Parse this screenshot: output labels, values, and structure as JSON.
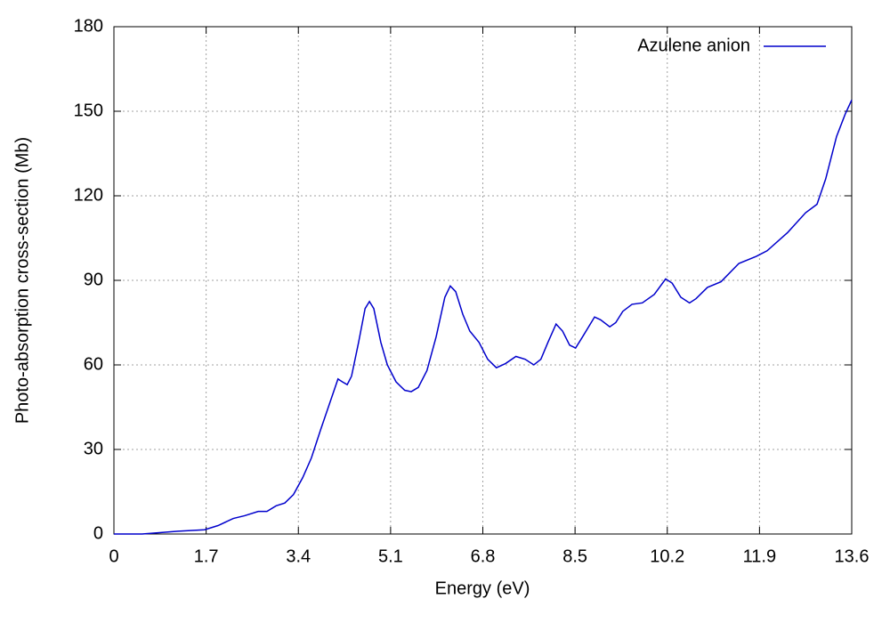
{
  "chart_data": {
    "type": "line",
    "x_label": "Energy (eV)",
    "y_label": "Photo-absorption cross-section (Mb)",
    "xlim": [
      0,
      13.6
    ],
    "ylim": [
      0,
      180
    ],
    "xticks": [
      0,
      1.7,
      3.4,
      5.1,
      6.8,
      8.5,
      10.2,
      11.9,
      13.6
    ],
    "yticks": [
      0,
      30,
      60,
      90,
      120,
      150,
      180
    ],
    "grid": true,
    "legend": "upper right",
    "x": [
      0,
      0.52,
      1.18,
      1.67,
      1.92,
      2.2,
      2.41,
      2.66,
      2.82,
      2.99,
      3.15,
      3.31,
      3.48,
      3.64,
      3.81,
      3.97,
      4.13,
      4.21,
      4.3,
      4.38,
      4.51,
      4.63,
      4.71,
      4.79,
      4.92,
      5.04,
      5.2,
      5.36,
      5.48,
      5.61,
      5.77,
      5.94,
      6.1,
      6.2,
      6.3,
      6.43,
      6.56,
      6.73,
      6.89,
      7.05,
      7.22,
      7.41,
      7.58,
      7.74,
      7.87,
      8.0,
      8.15,
      8.27,
      8.4,
      8.51,
      8.64,
      8.86,
      8.97,
      9.14,
      9.25,
      9.38,
      9.55,
      9.74,
      9.96,
      10.17,
      10.29,
      10.45,
      10.61,
      10.73,
      10.94,
      11.19,
      11.52,
      11.84,
      12.04,
      12.42,
      12.75,
      12.96,
      13.12,
      13.32,
      13.48,
      13.6
    ],
    "series": [
      {
        "name": "Azulene anion",
        "color": "#0000cc",
        "values": [
          0,
          0,
          1,
          1.5,
          3,
          5.5,
          6.5,
          8,
          8,
          10,
          11,
          14,
          20,
          27,
          37,
          46,
          55,
          54,
          53,
          56,
          68,
          80,
          82.5,
          80,
          68,
          60,
          54,
          51,
          50.5,
          52,
          58,
          70,
          84,
          88,
          86,
          78,
          72,
          68,
          62,
          59,
          60.5,
          63,
          62,
          60,
          62,
          68,
          74.5,
          72,
          67,
          66,
          70,
          77,
          76,
          73.5,
          75,
          79,
          81.5,
          82,
          85,
          90.5,
          89,
          84,
          82,
          83.5,
          87.5,
          89.5,
          96,
          98.5,
          100.5,
          107,
          114,
          117,
          126,
          141,
          149,
          154
        ]
      }
    ]
  }
}
